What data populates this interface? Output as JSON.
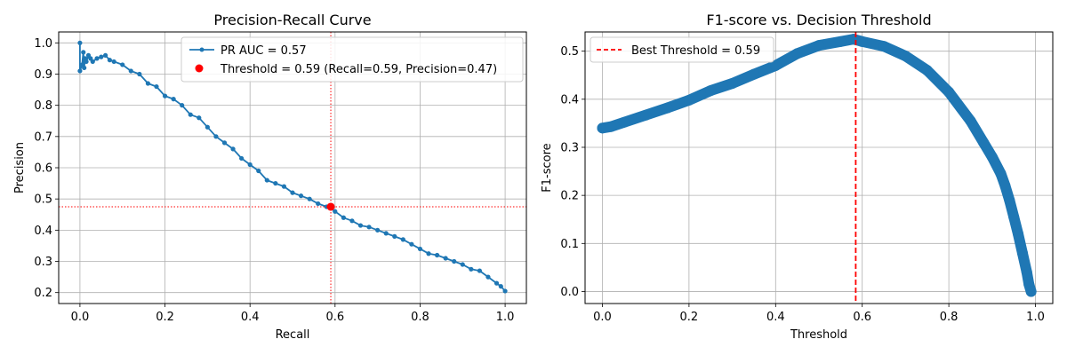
{
  "chart_data": [
    {
      "type": "line",
      "title": "Precision-Recall Curve",
      "xlabel": "Recall",
      "ylabel": "Precision",
      "xlim": [
        -0.05,
        1.05
      ],
      "ylim": [
        0.165,
        1.035
      ],
      "xticks": [
        "0.0",
        "0.2",
        "0.4",
        "0.6",
        "0.8",
        "1.0"
      ],
      "yticks": [
        "0.2",
        "0.3",
        "0.4",
        "0.5",
        "0.6",
        "0.7",
        "0.8",
        "0.9",
        "1.0"
      ],
      "grid": true,
      "legend_position": "top-right",
      "series": [
        {
          "name": "PR AUC = 0.57",
          "color": "#1f77b4",
          "x": [
            0.0,
            0.0,
            0.005,
            0.008,
            0.01,
            0.012,
            0.015,
            0.02,
            0.025,
            0.03,
            0.04,
            0.05,
            0.06,
            0.07,
            0.08,
            0.1,
            0.12,
            0.14,
            0.16,
            0.18,
            0.2,
            0.22,
            0.24,
            0.26,
            0.28,
            0.3,
            0.32,
            0.34,
            0.36,
            0.38,
            0.4,
            0.42,
            0.44,
            0.46,
            0.48,
            0.5,
            0.52,
            0.54,
            0.56,
            0.58,
            0.59,
            0.6,
            0.62,
            0.64,
            0.66,
            0.68,
            0.7,
            0.72,
            0.74,
            0.76,
            0.78,
            0.8,
            0.82,
            0.84,
            0.86,
            0.88,
            0.9,
            0.92,
            0.94,
            0.96,
            0.98,
            0.99,
            1.0
          ],
          "y": [
            1.0,
            0.91,
            0.93,
            0.97,
            0.92,
            0.95,
            0.94,
            0.96,
            0.95,
            0.94,
            0.95,
            0.955,
            0.96,
            0.945,
            0.94,
            0.93,
            0.91,
            0.9,
            0.87,
            0.86,
            0.83,
            0.82,
            0.8,
            0.77,
            0.76,
            0.73,
            0.7,
            0.68,
            0.66,
            0.63,
            0.61,
            0.59,
            0.56,
            0.55,
            0.54,
            0.52,
            0.51,
            0.5,
            0.485,
            0.475,
            0.47,
            0.46,
            0.44,
            0.43,
            0.415,
            0.41,
            0.4,
            0.39,
            0.38,
            0.37,
            0.355,
            0.34,
            0.325,
            0.32,
            0.31,
            0.3,
            0.29,
            0.275,
            0.27,
            0.25,
            0.23,
            0.22,
            0.205
          ]
        }
      ],
      "highlight_point": {
        "label": "Threshold = 0.59 (Recall=0.59, Precision=0.47)",
        "x": 0.59,
        "y": 0.475,
        "color": "#ff0000"
      }
    },
    {
      "type": "line",
      "title": "F1-score vs. Decision Threshold",
      "xlabel": "Threshold",
      "ylabel": "F1-score",
      "xlim": [
        -0.04,
        1.04
      ],
      "ylim": [
        -0.025,
        0.54
      ],
      "xticks": [
        "0.0",
        "0.2",
        "0.4",
        "0.6",
        "0.8",
        "1.0"
      ],
      "yticks": [
        "0.0",
        "0.1",
        "0.2",
        "0.3",
        "0.4",
        "0.5"
      ],
      "grid": true,
      "legend_position": "top-left",
      "series": [
        {
          "color": "#1f77b4",
          "x": [
            0.0,
            0.02,
            0.05,
            0.1,
            0.15,
            0.2,
            0.25,
            0.3,
            0.35,
            0.4,
            0.45,
            0.5,
            0.55,
            0.58,
            0.6,
            0.65,
            0.7,
            0.75,
            0.8,
            0.85,
            0.88,
            0.9,
            0.92,
            0.93,
            0.94,
            0.95,
            0.96,
            0.97,
            0.98,
            0.985,
            0.99
          ],
          "y": [
            0.34,
            0.343,
            0.352,
            0.367,
            0.382,
            0.398,
            0.418,
            0.433,
            0.452,
            0.47,
            0.495,
            0.512,
            0.52,
            0.525,
            0.52,
            0.51,
            0.49,
            0.46,
            0.415,
            0.355,
            0.31,
            0.28,
            0.245,
            0.22,
            0.19,
            0.155,
            0.12,
            0.08,
            0.04,
            0.015,
            0.0
          ]
        }
      ],
      "vline": {
        "label": "Best Threshold = 0.59",
        "x": 0.585,
        "color": "#ff0000"
      }
    }
  ]
}
